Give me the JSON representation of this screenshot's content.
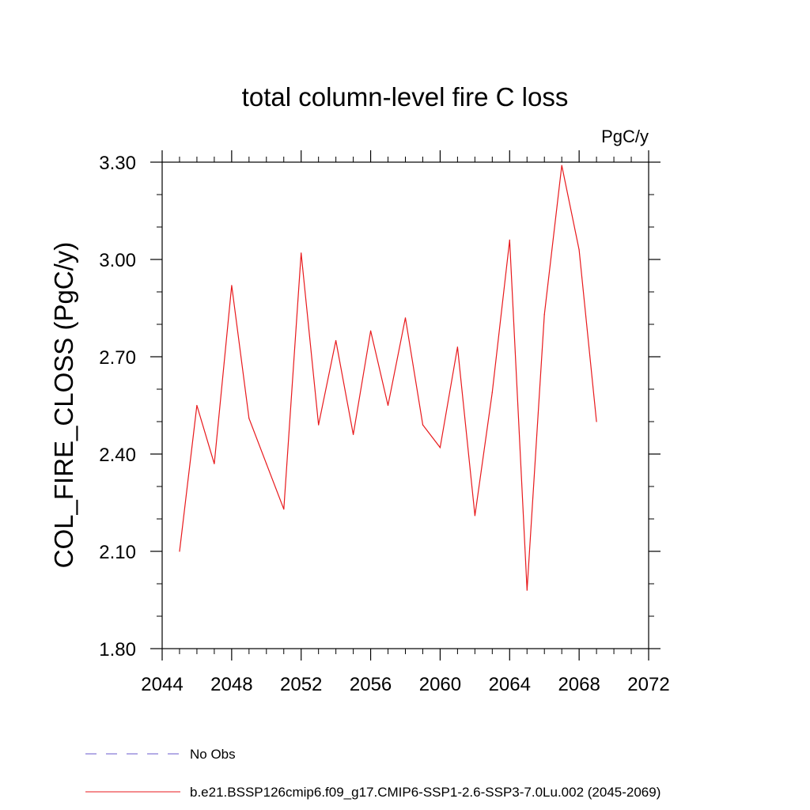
{
  "chart_data": {
    "type": "line",
    "title": "total column-level fire C loss",
    "units_label": "PgC/y",
    "ylabel": "COL_FIRE_CLOSS  (PgC/y)",
    "xlabel": "",
    "xlim": [
      2044,
      2072
    ],
    "ylim": [
      1.8,
      3.3
    ],
    "xticks": [
      2044,
      2048,
      2052,
      2056,
      2060,
      2064,
      2068,
      2072
    ],
    "xtick_labels": [
      "2044",
      "2048",
      "2052",
      "2056",
      "2060",
      "2064",
      "2068",
      "2072"
    ],
    "yticks": [
      1.8,
      2.1,
      2.4,
      2.7,
      3.0,
      3.3
    ],
    "ytick_labels": [
      "1.80",
      "2.10",
      "2.40",
      "2.70",
      "3.00",
      "3.30"
    ],
    "x_minor_step": 1,
    "y_minor_step": 0.1,
    "grid": false,
    "legend_position": "bottom",
    "series": [
      {
        "name": "b.e21.BSSP126cmip6.f09_g17.CMIP6-SSP1-2.6-SSP3-7.0Lu.002 (2045-2069)",
        "color": "#e8191c",
        "style": "solid",
        "x": [
          2045,
          2046,
          2047,
          2048,
          2049,
          2050,
          2051,
          2052,
          2053,
          2054,
          2055,
          2056,
          2057,
          2058,
          2059,
          2060,
          2061,
          2062,
          2063,
          2064,
          2065,
          2066,
          2067,
          2068,
          2069
        ],
        "values": [
          2.1,
          2.55,
          2.37,
          2.92,
          2.51,
          2.37,
          2.23,
          3.02,
          2.49,
          2.75,
          2.46,
          2.78,
          2.55,
          2.82,
          2.49,
          2.42,
          2.73,
          2.21,
          2.59,
          3.06,
          1.98,
          2.83,
          3.29,
          3.03,
          2.5
        ]
      }
    ],
    "legend": [
      {
        "label": "No Obs",
        "color": "#6a5acd",
        "style": "dashed"
      },
      {
        "label": "b.e21.BSSP126cmip6.f09_g17.CMIP6-SSP1-2.6-SSP3-7.0Lu.002 (2045-2069)",
        "color": "#e8191c",
        "style": "solid"
      }
    ]
  }
}
